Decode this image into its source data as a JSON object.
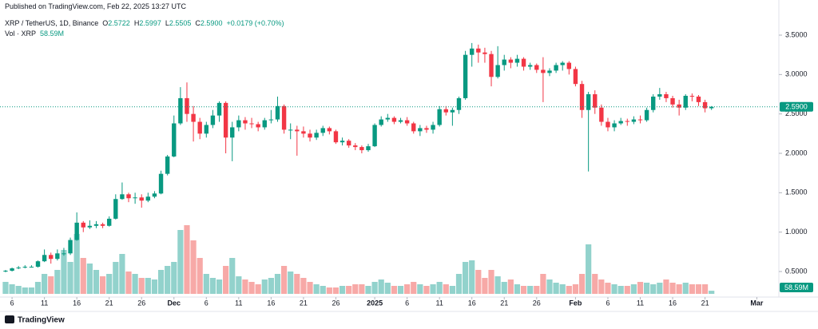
{
  "published": "Published on TradingView.com, Feb 22, 2025 13:27 UTC",
  "brand": "TradingView",
  "legend": {
    "symbol": "XRP / TetherUS, 1D, Binance",
    "o_label": "O",
    "o": "2.5722",
    "h_label": "H",
    "h": "2.5997",
    "l_label": "L",
    "l": "2.5505",
    "c_label": "C",
    "c": "2.5900",
    "change": "+0.0179 (+0.70%)",
    "vol_label": "Vol · XRP",
    "vol": "58.59M"
  },
  "chart_data": {
    "type": "candlestick",
    "up_color": "#089981",
    "down_color": "#f23645",
    "volume_up_color": "#92d2cc",
    "volume_down_color": "#f7a9a7",
    "xlim": [
      -0.86,
      119.4
    ],
    "ylim": [
      0.196,
      3.642
    ],
    "yticks": [
      {
        "value": 0.5,
        "label": "0.5000"
      },
      {
        "value": 1,
        "label": "1.0000"
      },
      {
        "value": 1.5,
        "label": "1.5000"
      },
      {
        "value": 2,
        "label": "2.0000"
      },
      {
        "value": 2.5,
        "label": "2.5000"
      },
      {
        "value": 3,
        "label": "3.0000"
      },
      {
        "value": 3.5,
        "label": "3.5000"
      }
    ],
    "xticks": [
      {
        "value": 1,
        "label": "6"
      },
      {
        "value": 6,
        "label": "11"
      },
      {
        "value": 11,
        "label": "16"
      },
      {
        "value": 16,
        "label": "21"
      },
      {
        "value": 21,
        "label": "26"
      },
      {
        "value": 26,
        "label": "Dec"
      },
      {
        "value": 31,
        "label": "6"
      },
      {
        "value": 36,
        "label": "11"
      },
      {
        "value": 41,
        "label": "16"
      },
      {
        "value": 46,
        "label": "21"
      },
      {
        "value": 51,
        "label": "26"
      },
      {
        "value": 57,
        "label": "2025"
      },
      {
        "value": 62,
        "label": "6"
      },
      {
        "value": 67,
        "label": "11"
      },
      {
        "value": 72,
        "label": "16"
      },
      {
        "value": 77,
        "label": "21"
      },
      {
        "value": 82,
        "label": "26"
      },
      {
        "value": 88,
        "label": "Feb"
      },
      {
        "value": 93,
        "label": "6"
      },
      {
        "value": 98,
        "label": "11"
      },
      {
        "value": 103,
        "label": "16"
      },
      {
        "value": 108,
        "label": "21"
      },
      {
        "value": 116,
        "label": "Mar"
      }
    ],
    "open": [
      0.5,
      0.51,
      0.54,
      0.55,
      0.56,
      0.56,
      0.63,
      0.71,
      0.66,
      0.73,
      0.73,
      0.9,
      1.12,
      1.06,
      1.08,
      1.1,
      1.08,
      1.17,
      1.42,
      1.48,
      1.43,
      1.44,
      1.4,
      1.45,
      1.49,
      1.74,
      1.96,
      2.38,
      2.7,
      2.5,
      2.4,
      2.25,
      2.36,
      2.48,
      2.64,
      2.2,
      2.33,
      2.42,
      2.38,
      2.37,
      2.33,
      2.42,
      2.43,
      2.6,
      2.3,
      2.3,
      2.28,
      2.25,
      2.2,
      2.26,
      2.32,
      2.28,
      2.14,
      2.16,
      2.1,
      2.08,
      2.04,
      2.09,
      2.36,
      2.43,
      2.45,
      2.4,
      2.42,
      2.38,
      2.28,
      2.32,
      2.3,
      2.36,
      2.56,
      2.52,
      2.55,
      2.7,
      3.25,
      3.33,
      3.28,
      3.26,
      2.97,
      3.12,
      3.19,
      3.15,
      3.2,
      3.1,
      3.12,
      3.06,
      3.02,
      3.05,
      3.12,
      3.15,
      3.07,
      2.88,
      2.55,
      2.75,
      2.58,
      2.4,
      2.33,
      2.38,
      2.41,
      2.4,
      2.43,
      2.42,
      2.55,
      2.72,
      2.75,
      2.7,
      2.62,
      2.58,
      2.73,
      2.72,
      2.65,
      2.5722
    ],
    "high": [
      0.52,
      0.55,
      0.57,
      0.58,
      0.58,
      0.64,
      0.78,
      0.74,
      0.78,
      0.8,
      0.93,
      1.25,
      1.14,
      1.15,
      1.14,
      1.12,
      1.2,
      1.48,
      1.63,
      1.5,
      1.5,
      1.48,
      1.5,
      1.52,
      1.78,
      1.98,
      2.48,
      2.84,
      2.9,
      2.6,
      2.45,
      2.4,
      2.55,
      2.66,
      2.66,
      2.4,
      2.48,
      2.46,
      2.45,
      2.4,
      2.45,
      2.55,
      2.72,
      2.62,
      2.38,
      2.35,
      2.34,
      2.3,
      2.3,
      2.35,
      2.34,
      2.3,
      2.2,
      2.18,
      2.13,
      2.1,
      2.12,
      2.38,
      2.47,
      2.5,
      2.47,
      2.45,
      2.46,
      2.4,
      2.36,
      2.35,
      2.4,
      2.6,
      2.6,
      2.58,
      2.72,
      3.3,
      3.4,
      3.38,
      3.34,
      3.3,
      3.36,
      3.25,
      3.22,
      3.25,
      3.22,
      3.15,
      3.14,
      3.22,
      3.08,
      3.15,
      3.17,
      3.17,
      3.1,
      2.92,
      2.78,
      2.8,
      2.62,
      2.45,
      2.42,
      2.45,
      2.44,
      2.47,
      2.48,
      2.58,
      2.75,
      2.83,
      2.78,
      2.73,
      2.68,
      2.75,
      2.76,
      2.74,
      2.68,
      2.5997
    ],
    "low": [
      0.49,
      0.5,
      0.53,
      0.54,
      0.55,
      0.55,
      0.62,
      0.6,
      0.64,
      0.7,
      0.71,
      0.89,
      1.0,
      1.04,
      1.05,
      1.05,
      1.07,
      1.16,
      1.41,
      1.38,
      1.36,
      1.31,
      1.38,
      1.43,
      1.48,
      1.72,
      1.95,
      2.36,
      2.4,
      2.15,
      2.18,
      2.2,
      2.32,
      2.4,
      2.0,
      1.9,
      2.28,
      2.3,
      2.32,
      2.28,
      2.3,
      2.38,
      2.4,
      2.25,
      2.18,
      1.97,
      2.2,
      2.15,
      2.17,
      2.22,
      2.24,
      2.12,
      2.1,
      2.07,
      2.04,
      2.0,
      2.02,
      2.08,
      2.34,
      2.4,
      2.37,
      2.38,
      2.35,
      2.25,
      2.22,
      2.26,
      2.25,
      2.34,
      2.48,
      2.35,
      2.5,
      2.68,
      3.1,
      3.15,
      3.15,
      2.85,
      2.95,
      3.05,
      3.08,
      3.1,
      3.05,
      3.06,
      3.02,
      2.65,
      2.98,
      3.02,
      3.05,
      3.0,
      2.85,
      2.45,
      1.77,
      2.5,
      2.35,
      2.28,
      2.28,
      2.36,
      2.35,
      2.37,
      2.38,
      2.4,
      2.52,
      2.68,
      2.65,
      2.58,
      2.48,
      2.55,
      2.66,
      2.6,
      2.52,
      2.5505
    ],
    "close": [
      0.51,
      0.54,
      0.55,
      0.56,
      0.56,
      0.63,
      0.71,
      0.66,
      0.73,
      0.73,
      0.9,
      1.12,
      1.06,
      1.08,
      1.1,
      1.08,
      1.17,
      1.42,
      1.48,
      1.43,
      1.44,
      1.4,
      1.45,
      1.49,
      1.74,
      1.96,
      2.38,
      2.7,
      2.5,
      2.4,
      2.25,
      2.36,
      2.48,
      2.64,
      2.2,
      2.33,
      2.42,
      2.38,
      2.37,
      2.33,
      2.42,
      2.43,
      2.6,
      2.3,
      2.3,
      2.28,
      2.25,
      2.2,
      2.26,
      2.32,
      2.28,
      2.14,
      2.16,
      2.1,
      2.08,
      2.04,
      2.09,
      2.36,
      2.43,
      2.45,
      2.4,
      2.42,
      2.38,
      2.28,
      2.32,
      2.3,
      2.36,
      2.56,
      2.52,
      2.55,
      2.7,
      3.25,
      3.33,
      3.28,
      3.26,
      2.97,
      3.12,
      3.19,
      3.15,
      3.2,
      3.1,
      3.12,
      3.06,
      3.02,
      3.05,
      3.12,
      3.15,
      3.07,
      2.88,
      2.55,
      2.75,
      2.58,
      2.4,
      2.33,
      2.38,
      2.41,
      2.4,
      2.43,
      2.42,
      2.55,
      2.72,
      2.75,
      2.7,
      2.62,
      2.58,
      2.73,
      2.72,
      2.65,
      2.5722,
      2.59
    ],
    "volume": [
      225,
      180,
      150,
      120,
      120,
      225,
      375,
      330,
      450,
      825,
      600,
      1125,
      675,
      570,
      450,
      330,
      375,
      600,
      750,
      420,
      375,
      300,
      300,
      270,
      450,
      525,
      600,
      1200,
      1290,
      1005,
      675,
      375,
      300,
      270,
      525,
      675,
      330,
      270,
      225,
      180,
      270,
      300,
      375,
      525,
      420,
      375,
      300,
      225,
      180,
      150,
      120,
      120,
      150,
      150,
      180,
      180,
      150,
      225,
      270,
      210,
      150,
      150,
      180,
      225,
      180,
      150,
      180,
      225,
      180,
      150,
      375,
      600,
      630,
      450,
      300,
      450,
      330,
      225,
      270,
      180,
      150,
      150,
      150,
      375,
      270,
      210,
      180,
      150,
      180,
      375,
      930,
      375,
      270,
      210,
      180,
      150,
      150,
      180,
      225,
      210,
      180,
      210,
      270,
      210,
      180,
      210,
      180,
      180,
      180,
      58.59
    ],
    "last_price_label": "2.5900",
    "last_volume_label": "58.59M"
  }
}
